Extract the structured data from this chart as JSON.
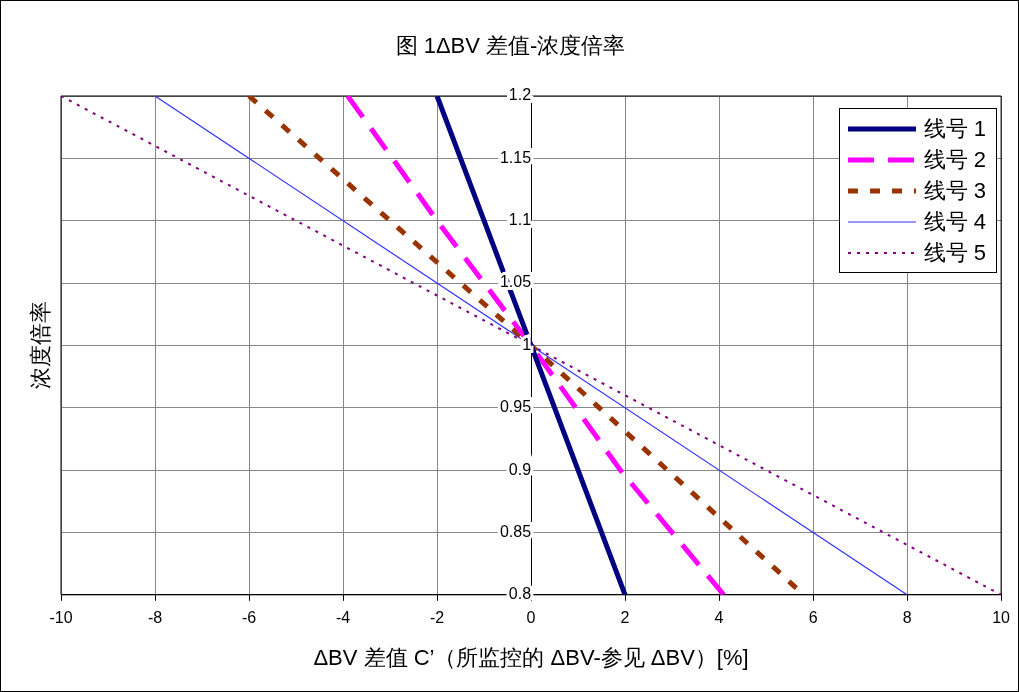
{
  "chart_data": {
    "type": "line",
    "title": "图 1ΔBV 差值-浓度倍率",
    "xlabel": "ΔBV 差值 C’（所监控的 ΔBV-参见 ΔBV）[%]",
    "ylabel": "浓度倍率",
    "xlim": [
      -10,
      10
    ],
    "xticks": [
      -10,
      -8,
      -6,
      -4,
      -2,
      0,
      2,
      4,
      6,
      8,
      10
    ],
    "ylim": [
      0.8,
      1.2
    ],
    "yticks": [
      0.8,
      0.85,
      0.9,
      0.95,
      1,
      1.05,
      1.1,
      1.15,
      1.2
    ],
    "grid": true,
    "legend": "top right",
    "marker": "none",
    "series": [
      {
        "name": "线号 1",
        "color": "#000080",
        "line_style": "solid",
        "x": [
          -2,
          -1,
          0,
          1,
          2
        ],
        "values": [
          1.2,
          1.1,
          1,
          0.9,
          0.8
        ]
      },
      {
        "name": "线号 2",
        "color": "#ff00ff",
        "line_style": "dashed",
        "x": [
          -3.9,
          -2,
          0,
          1.9,
          4.1
        ],
        "values": [
          1.2,
          1.1,
          1,
          0.9,
          0.8
        ]
      },
      {
        "name": "线号 3",
        "color": "#993300",
        "line_style": "dashed",
        "x": [
          -6,
          0,
          5.8
        ],
        "values": [
          1.2,
          1,
          0.8
        ]
      },
      {
        "name": "线号 4",
        "color": "#3333ff",
        "line_style": "solid",
        "x": [
          -8,
          0,
          8
        ],
        "values": [
          1.2,
          1,
          0.8
        ]
      },
      {
        "name": "线号 5",
        "color": "#800080",
        "line_style": "dotted",
        "x": [
          -10,
          0,
          10
        ],
        "values": [
          1.2,
          1,
          0.8
        ]
      }
    ]
  }
}
